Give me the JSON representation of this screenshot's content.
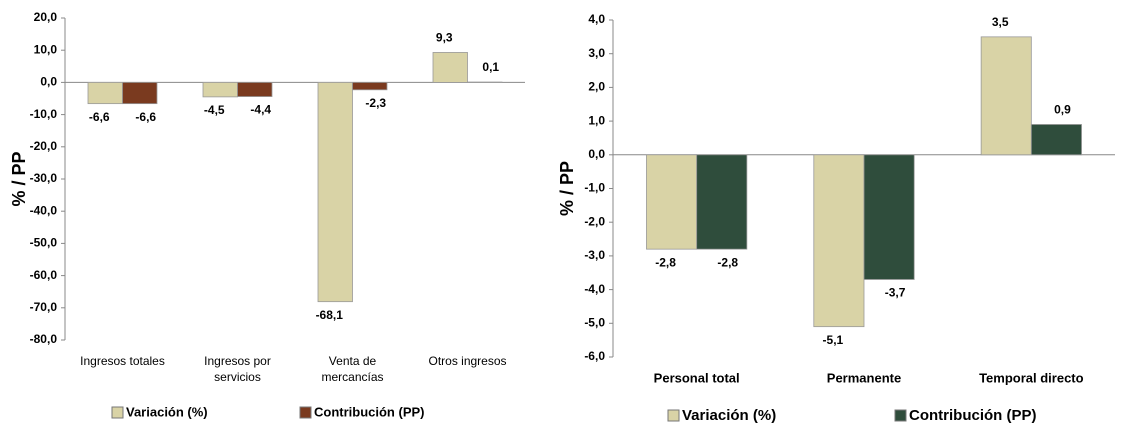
{
  "chart_data": [
    {
      "type": "bar",
      "y_label": "% / PP",
      "categories": [
        "Ingresos totales",
        "Ingresos por servicios",
        "Venta de mercancías",
        "Otros ingresos"
      ],
      "series": [
        {
          "name": "Variación (%)",
          "color": "#d9d3a6",
          "values": [
            -6.6,
            -4.5,
            -68.1,
            9.3
          ],
          "value_labels": [
            "-6,6",
            "-4,5",
            "-68,1",
            "9,3"
          ]
        },
        {
          "name": "Contribución (PP)",
          "color": "#7a3a1f",
          "values": [
            -6.6,
            -4.4,
            -2.3,
            0.1
          ],
          "value_labels": [
            "-6,6",
            "-4,4",
            "-2,3",
            "0,1"
          ]
        }
      ],
      "ylim": [
        -80,
        20
      ],
      "yticks": [
        {
          "value": 20,
          "label": "20,0"
        },
        {
          "value": 10,
          "label": "10,0"
        },
        {
          "value": 0,
          "label": "0,0"
        },
        {
          "value": -10,
          "label": "-10,0"
        },
        {
          "value": -20,
          "label": "-20,0"
        },
        {
          "value": -30,
          "label": "-30,0"
        },
        {
          "value": -40,
          "label": "-40,0"
        },
        {
          "value": -50,
          "label": "-50,0"
        },
        {
          "value": -60,
          "label": "-60,0"
        },
        {
          "value": -70,
          "label": "-70,0"
        },
        {
          "value": -80,
          "label": "-80,0"
        }
      ],
      "grid": false
    },
    {
      "type": "bar",
      "y_label": "% / PP",
      "categories": [
        "Personal total",
        "Permanente",
        "Temporal directo"
      ],
      "series": [
        {
          "name": "Variación (%)",
          "color": "#d9d3a6",
          "values": [
            -2.8,
            -5.1,
            3.5
          ],
          "value_labels": [
            "-2,8",
            "-5,1",
            "3,5"
          ]
        },
        {
          "name": "Contribución (PP)",
          "color": "#2f4d3c",
          "values": [
            -2.8,
            -3.7,
            0.9
          ],
          "value_labels": [
            "-2,8",
            "-3,7",
            "0,9"
          ]
        }
      ],
      "ylim": [
        -6,
        4
      ],
      "yticks": [
        {
          "value": 4,
          "label": "4,0"
        },
        {
          "value": 3,
          "label": "3,0"
        },
        {
          "value": 2,
          "label": "2,0"
        },
        {
          "value": 1,
          "label": "1,0"
        },
        {
          "value": 0,
          "label": "0,0"
        },
        {
          "value": -1,
          "label": "-1,0"
        },
        {
          "value": -2,
          "label": "-2,0"
        },
        {
          "value": -3,
          "label": "-3,0"
        },
        {
          "value": -4,
          "label": "-4,0"
        },
        {
          "value": -5,
          "label": "-5,0"
        },
        {
          "value": -6,
          "label": "-6,0"
        }
      ],
      "grid": false
    }
  ]
}
